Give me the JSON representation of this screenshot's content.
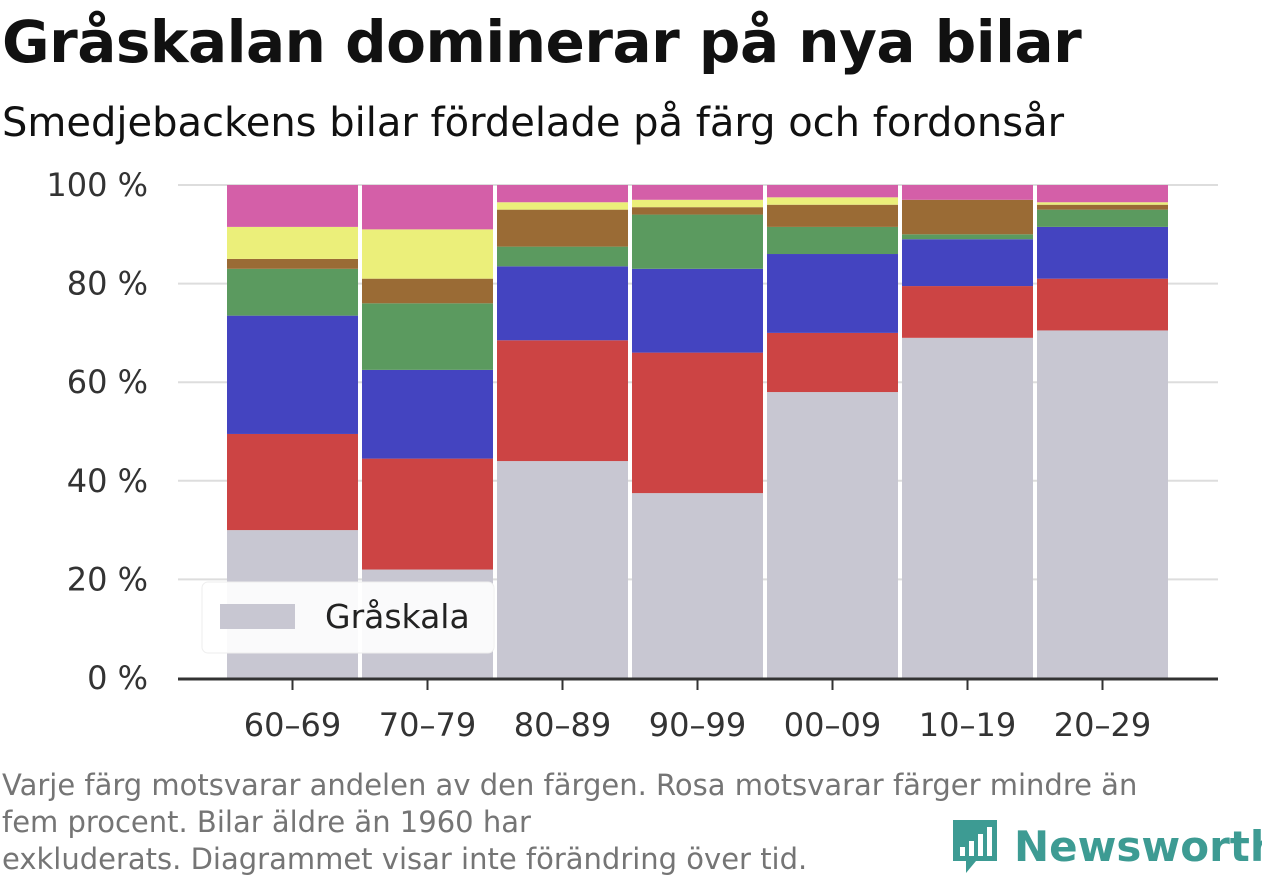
{
  "title": "Gråskalan dominerar på nya bilar",
  "subtitle": "Smedjebackens bilar fördelade på färg och fordonsår",
  "footnote": {
    "line1": "Varje färg motsvarar andelen av den färgen. Rosa motsvarar färger mindre än",
    "line2": "fem procent. Bilar äldre än 1960 har",
    "line3": "exkluderats. Diagrammet visar inte förändring över tid."
  },
  "brand": {
    "name": "Newsworthy",
    "color": "#3d9b93"
  },
  "chart_data": {
    "type": "bar",
    "stacked": true,
    "categories": [
      "60–69",
      "70–79",
      "80–89",
      "90–99",
      "00–09",
      "10–19",
      "20–29"
    ],
    "series": [
      {
        "name": "Gråskala",
        "color": "#c8c7d2",
        "values": [
          30,
          22,
          44,
          37.5,
          58,
          69,
          70.5
        ]
      },
      {
        "color": "#cc4444",
        "values": [
          19.5,
          22.5,
          24.5,
          28.5,
          12,
          10.5,
          10.5
        ]
      },
      {
        "color": "#4444c0",
        "values": [
          24,
          18,
          15,
          17,
          16,
          9.5,
          10.5
        ]
      },
      {
        "color": "#5b9a5f",
        "values": [
          9.5,
          13.5,
          4,
          11,
          5.5,
          1,
          3.5
        ]
      },
      {
        "color": "#9a6b35",
        "values": [
          2,
          5,
          7.5,
          1.5,
          4.5,
          7,
          1
        ]
      },
      {
        "color": "#ebef7a",
        "values": [
          6.5,
          10,
          1.5,
          1.5,
          1.5,
          0,
          0.5
        ]
      },
      {
        "color": "#d45fa8",
        "values": [
          8.5,
          9,
          3.5,
          3,
          2.5,
          3,
          3.5
        ]
      }
    ],
    "yticks": [
      "0 %",
      "20 %",
      "40 %",
      "60 %",
      "80 %",
      "100 %"
    ],
    "ylim": [
      0,
      100
    ],
    "legend": {
      "position": "bottom-left",
      "entries": [
        "Gråskala"
      ]
    },
    "grid": true
  }
}
